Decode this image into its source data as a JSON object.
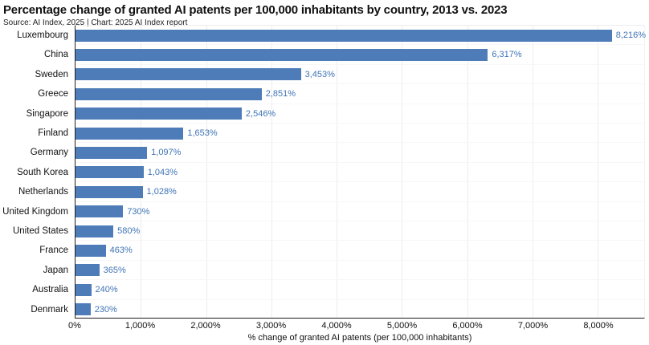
{
  "chart_data": {
    "type": "bar",
    "orientation": "horizontal",
    "title": "Percentage change of granted AI patents per 100,000 inhabitants by country, 2013 vs. 2023",
    "source_line": "Source: AI Index, 2025 | Chart: 2025 AI Index report",
    "xlabel": "% change of granted AI patents (per 100,000 inhabitants)",
    "categories": [
      "Luxembourg",
      "China",
      "Sweden",
      "Greece",
      "Singapore",
      "Finland",
      "Germany",
      "South Korea",
      "Netherlands",
      "United Kingdom",
      "United States",
      "France",
      "Japan",
      "Australia",
      "Denmark"
    ],
    "values": [
      8216,
      6317,
      3453,
      2851,
      2546,
      1653,
      1097,
      1043,
      1028,
      730,
      580,
      463,
      365,
      240,
      230
    ],
    "value_labels": [
      "8,216%",
      "6,317%",
      "3,453%",
      "2,851%",
      "2,546%",
      "1,653%",
      "1,097%",
      "1,043%",
      "1,028%",
      "730%",
      "580%",
      "463%",
      "365%",
      "240%",
      "230%"
    ],
    "xlim": [
      0,
      8712
    ],
    "xticks": [
      0,
      1000,
      2000,
      3000,
      4000,
      5000,
      6000,
      7000,
      8000
    ],
    "xtick_labels": [
      "0%",
      "1,000%",
      "2,000%",
      "3,000%",
      "4,000%",
      "5,000%",
      "6,000%",
      "7,000%",
      "8,000%"
    ],
    "grid": "faint vertical gridlines at each tick, faint horizontal row separators",
    "legend": "none",
    "bar_color": "#4d7cb8",
    "value_label_color": "#3f74b5",
    "axis_color": "#222222"
  }
}
